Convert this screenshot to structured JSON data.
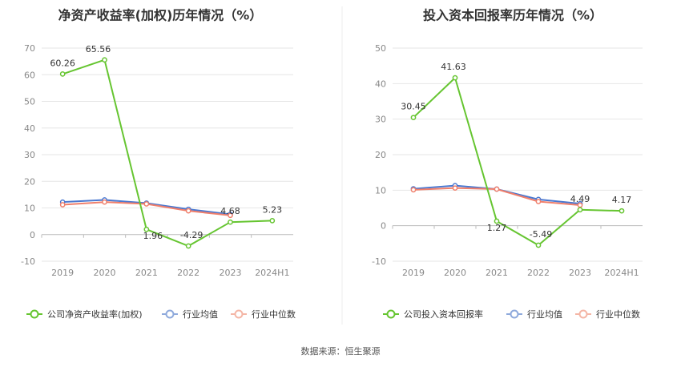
{
  "source": "数据来源：恒生聚源",
  "colors": {
    "company": "#66C531",
    "avg": "#4A78D0",
    "median": "#F07F6B",
    "avg_legend": "#8FAADC",
    "median_legend": "#F4B6A6"
  },
  "chart_data": [
    {
      "type": "line",
      "title": "净资产收益率(加权)历年情况（%）",
      "categories": [
        "2019",
        "2020",
        "2021",
        "2022",
        "2023",
        "2024H1"
      ],
      "ylim": [
        -10,
        70
      ],
      "yticks": [
        "70",
        "60",
        "50",
        "40",
        "30",
        "20",
        "10",
        "0",
        "-10"
      ],
      "grid": true,
      "legend_position": "bottom",
      "series": [
        {
          "name": "公司净资产收益率(加权)",
          "color": "#66C531",
          "values": [
            60.26,
            65.56,
            1.96,
            -4.29,
            4.68,
            5.23
          ],
          "labels": [
            "60.26",
            "65.56",
            "1.96",
            "-4.29",
            "4.68",
            "5.23"
          ]
        },
        {
          "name": "行业均值",
          "color": "#4A78D0",
          "values": [
            12.2,
            13.0,
            11.8,
            9.5,
            7.6,
            null
          ]
        },
        {
          "name": "行业中位数",
          "color": "#F07F6B",
          "values": [
            11.2,
            12.2,
            11.5,
            8.9,
            7.2,
            null
          ]
        }
      ]
    },
    {
      "type": "line",
      "title": "投入资本回报率历年情况（%）",
      "categories": [
        "2019",
        "2020",
        "2021",
        "2022",
        "2023",
        "2024H1"
      ],
      "ylim": [
        -10,
        50
      ],
      "yticks": [
        "50",
        "40",
        "30",
        "20",
        "10",
        "0",
        "-10"
      ],
      "grid": true,
      "legend_position": "bottom",
      "series": [
        {
          "name": "公司投入资本回报率",
          "color": "#66C531",
          "values": [
            30.45,
            41.63,
            1.27,
            -5.49,
            4.49,
            4.17
          ],
          "labels": [
            "30.45",
            "41.63",
            "1.27",
            "-5.49",
            "4.49",
            "4.17"
          ]
        },
        {
          "name": "行业均值",
          "color": "#4A78D0",
          "values": [
            10.4,
            11.3,
            10.3,
            7.4,
            6.2,
            null
          ]
        },
        {
          "name": "行业中位数",
          "color": "#F07F6B",
          "values": [
            10.1,
            10.6,
            10.3,
            6.8,
            5.8,
            null
          ]
        }
      ]
    }
  ]
}
